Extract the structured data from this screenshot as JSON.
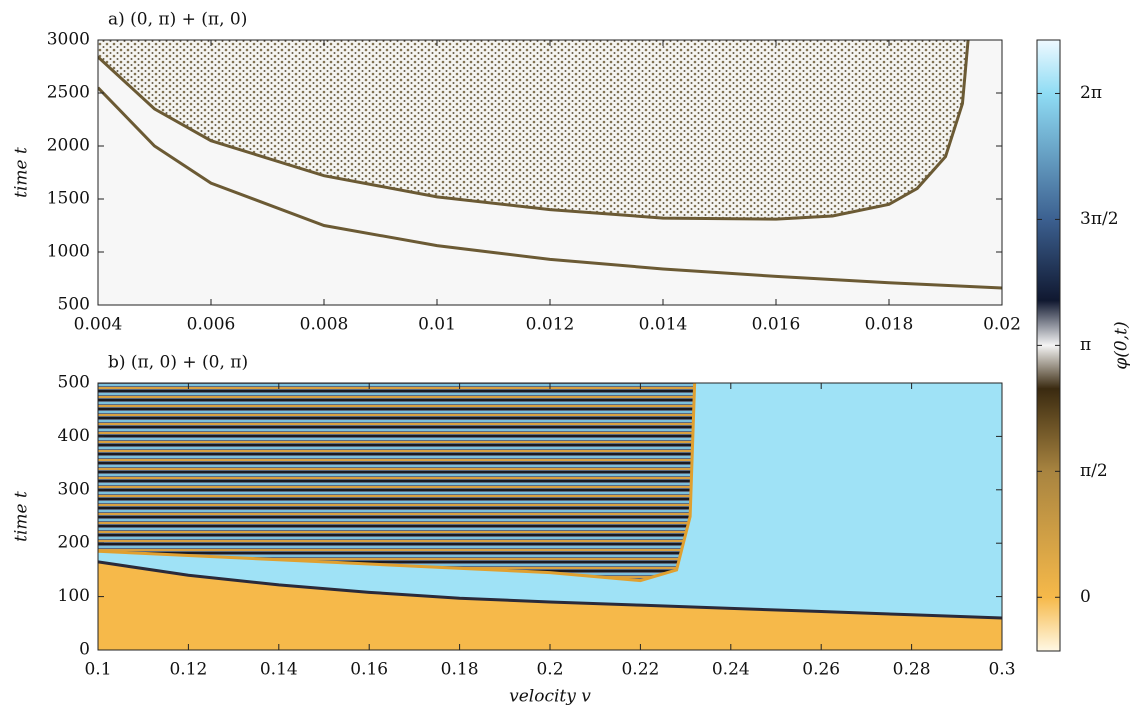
{
  "chart_data": [
    {
      "type": "line",
      "title": "a) (0, π) + (π, 0)",
      "ylabel": "time t",
      "xlim": [
        0.004,
        0.02
      ],
      "ylim": [
        500,
        3000
      ],
      "xticks": [
        0.004,
        0.006,
        0.008,
        0.01,
        0.012,
        0.014,
        0.016,
        0.018,
        0.02
      ],
      "yticks": [
        500,
        1000,
        1500,
        2000,
        2500,
        3000
      ],
      "series": [
        {
          "color": "#6b5a34",
          "x": [
            0.004,
            0.005,
            0.006,
            0.008,
            0.01,
            0.012,
            0.014,
            0.016,
            0.018,
            0.02
          ],
          "values": [
            2550,
            2000,
            1650,
            1250,
            1060,
            930,
            840,
            770,
            710,
            660
          ]
        },
        {
          "color": "#6b5a34",
          "x": [
            0.004,
            0.005,
            0.006,
            0.008,
            0.01,
            0.012,
            0.014,
            0.016,
            0.017,
            0.018,
            0.0185,
            0.019,
            0.0193,
            0.0194
          ],
          "values": [
            2840,
            2350,
            2050,
            1720,
            1520,
            1400,
            1320,
            1310,
            1340,
            1450,
            1600,
            1900,
            2400,
            3000
          ]
        }
      ]
    },
    {
      "type": "line",
      "title": "b) (π, 0) + (0, π)",
      "ylabel": "time t",
      "xlabel": "velocity v",
      "xlim": [
        0.1,
        0.3
      ],
      "ylim": [
        0,
        500
      ],
      "xticks": [
        0.1,
        0.12,
        0.14,
        0.16,
        0.18,
        0.2,
        0.22,
        0.24,
        0.26,
        0.28,
        0.3
      ],
      "yticks": [
        0,
        100,
        200,
        300,
        400,
        500
      ],
      "series": [
        {
          "color": "#2a2a3a",
          "x": [
            0.1,
            0.12,
            0.14,
            0.16,
            0.18,
            0.2,
            0.22,
            0.24,
            0.26,
            0.28,
            0.3
          ],
          "values": [
            165,
            140,
            122,
            108,
            97,
            90,
            84,
            78,
            72,
            66,
            60
          ]
        },
        {
          "color": "#e0a030",
          "x": [
            0.1,
            0.15,
            0.2,
            0.22,
            0.228,
            0.231,
            0.232
          ],
          "values": [
            185,
            165,
            145,
            130,
            150,
            250,
            500
          ]
        }
      ]
    },
    {
      "type": "colorbar",
      "label": "φ(0,t)",
      "lim": [
        -0.67,
        6.95
      ],
      "ticks": [
        0,
        {
          "value": 1.5708,
          "label": "π/2"
        },
        {
          "value": 3.1416,
          "label": "π"
        },
        {
          "value": 4.7124,
          "label": "3π/2"
        },
        {
          "value": 6.2832,
          "label": "2π"
        }
      ],
      "colors": [
        {
          "value": -0.67,
          "color": "#fff8e4"
        },
        {
          "value": 0,
          "color": "#f6b94a"
        },
        {
          "value": 1.5708,
          "color": "#a88440"
        },
        {
          "value": 2.6,
          "color": "#3a2a10"
        },
        {
          "value": 3.1416,
          "color": "#f4f4f4"
        },
        {
          "value": 3.7,
          "color": "#101830"
        },
        {
          "value": 4.7124,
          "color": "#3c6090"
        },
        {
          "value": 6.2832,
          "color": "#8fdcf4"
        },
        {
          "value": 6.95,
          "color": "#eef9ff"
        }
      ]
    }
  ]
}
